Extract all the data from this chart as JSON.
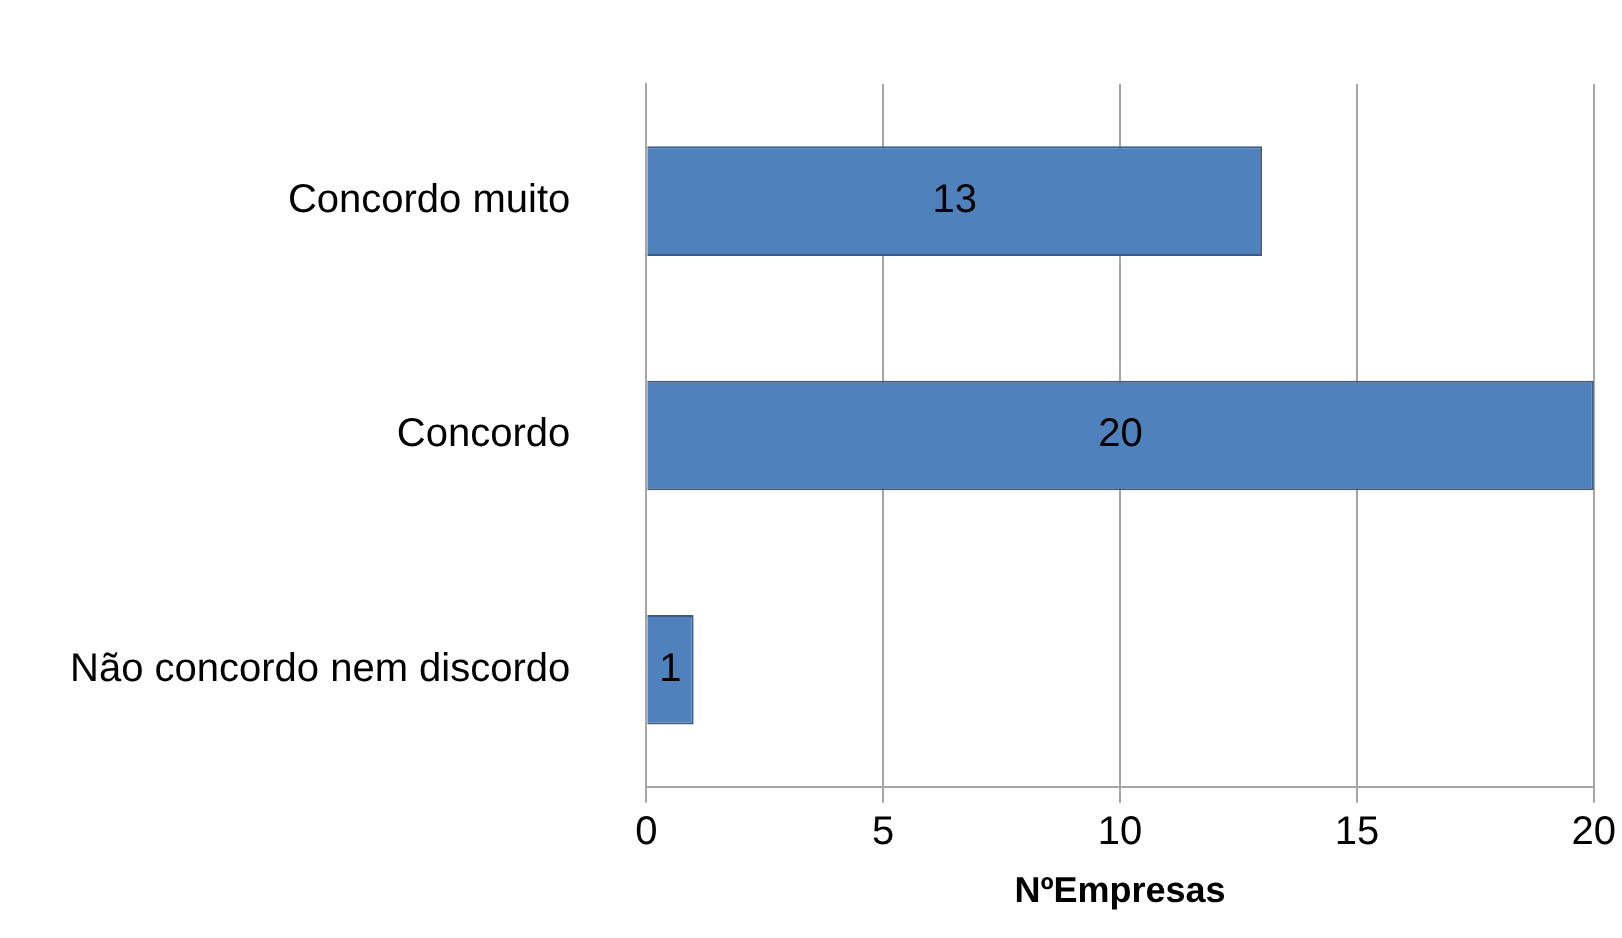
{
  "chart_data": {
    "type": "bar",
    "orientation": "horizontal",
    "xlabel": "NºEmpresas",
    "categories": [
      "Concordo muito",
      "Concordo",
      "Não concordo nem discordo"
    ],
    "values": [
      13,
      20,
      1
    ],
    "color": "#4f81bd",
    "xlim": [
      0,
      20
    ],
    "xticks": [
      0,
      5,
      10,
      15,
      20
    ],
    "grid": "x",
    "legend": false,
    "data_labels": true
  }
}
